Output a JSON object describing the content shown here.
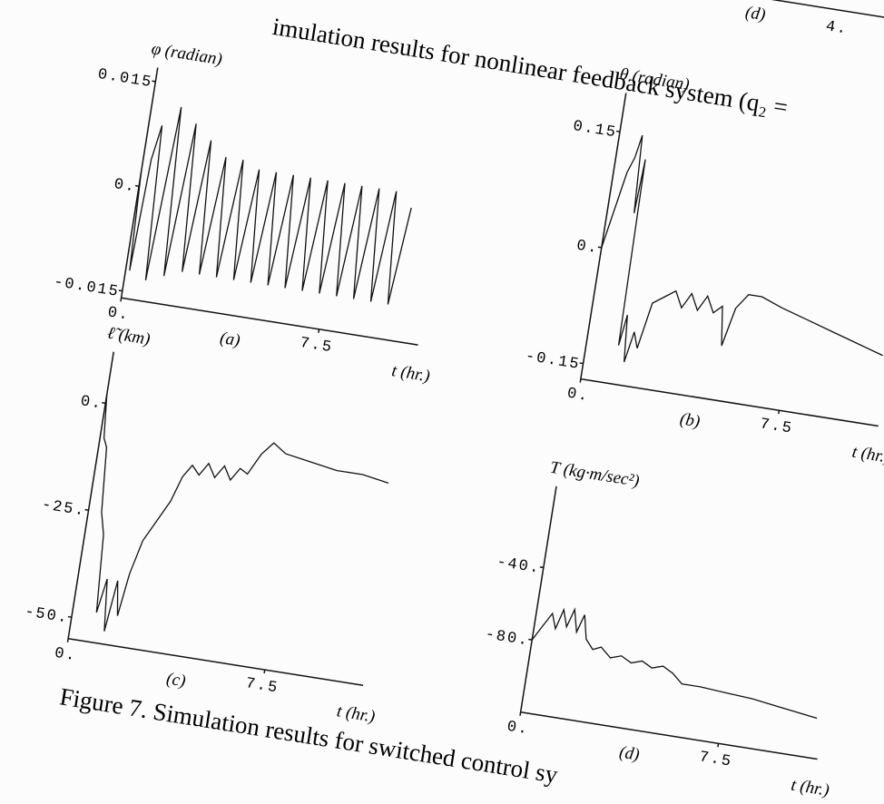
{
  "header": {
    "caption_fragment": "imulation results for nonlinear feedback system (q₂ =",
    "panel_label": "(d)",
    "tick_label": "4."
  },
  "chart_data": [
    {
      "type": "line",
      "y_label": "φ (radian)",
      "x_label": "t (hr.)",
      "panel_label": "(a)",
      "color": "#111111",
      "xlim": [
        0,
        11.25
      ],
      "ylim": [
        -0.016,
        0.017
      ],
      "xticks": [
        {
          "value": 0,
          "label": "0."
        },
        7.5
      ],
      "yticks": [
        0.015,
        {
          "value": 0,
          "label": "0."
        },
        -0.015
      ],
      "x": [
        0,
        0.15,
        0.3,
        0.5,
        0.8,
        1.1,
        1.45,
        1.75,
        2.1,
        2.4,
        2.75,
        3.05,
        3.4,
        3.7,
        4.05,
        4.35,
        4.7,
        5.0,
        5.35,
        5.65,
        6.0,
        6.3,
        6.65,
        6.95,
        7.3,
        7.6,
        7.95,
        8.25,
        8.6,
        8.9,
        9.25,
        9.55,
        9.9,
        10.2
      ],
      "values": [
        0.002,
        -0.012,
        0.004,
        0.009,
        -0.013,
        0.012,
        -0.012,
        0.01,
        -0.011,
        0.008,
        -0.011,
        0.006,
        -0.011,
        0.006,
        -0.011,
        0.005,
        -0.011,
        0.005,
        -0.011,
        0.005,
        -0.011,
        0.005,
        -0.011,
        0.005,
        -0.011,
        0.005,
        -0.011,
        0.005,
        -0.011,
        0.005,
        -0.011,
        0.005,
        -0.011,
        0.003
      ]
    },
    {
      "type": "line",
      "y_label": "θ (radian)",
      "x_label": "t (hr.)",
      "panel_label": "(b)",
      "color": "#111111",
      "xlim": [
        0,
        11.25
      ],
      "ylim": [
        -0.17,
        0.2
      ],
      "xticks": [
        {
          "value": 0,
          "label": "0."
        },
        7.5
      ],
      "yticks": [
        0.15,
        {
          "value": 0,
          "label": "0."
        },
        -0.15
      ],
      "x": [
        0,
        0.3,
        0.5,
        0.7,
        0.85,
        1.0,
        1.1,
        1.2,
        1.35,
        1.5,
        1.7,
        1.9,
        2.2,
        2.6,
        3.0,
        3.3,
        3.6,
        3.9,
        4.2,
        4.5,
        4.8,
        5.0,
        5.3,
        5.7,
        6.2,
        7.0,
        8.0,
        9.0,
        10.0,
        11.0
      ],
      "values": [
        0,
        0.06,
        0.1,
        0.12,
        0.15,
        0.05,
        0.12,
        -0.12,
        -0.08,
        -0.14,
        -0.1,
        -0.12,
        -0.06,
        -0.05,
        -0.04,
        -0.06,
        -0.04,
        -0.06,
        -0.04,
        -0.06,
        -0.05,
        -0.1,
        -0.05,
        -0.03,
        -0.03,
        -0.04,
        -0.05,
        -0.06,
        -0.07,
        -0.08
      ]
    },
    {
      "type": "line",
      "y_label": "ℓ̃ (km)",
      "x_label": "t (hr.)",
      "panel_label": "(c)",
      "color": "#111111",
      "xlim": [
        0,
        11.25
      ],
      "ylim": [
        -55,
        12
      ],
      "xticks": [
        {
          "value": 0,
          "label": "0."
        },
        7.5
      ],
      "yticks": [
        {
          "value": 0,
          "label": "0."
        },
        {
          "value": -25,
          "label": "-25."
        },
        {
          "value": -50,
          "label": "-50."
        }
      ],
      "x": [
        0,
        0.15,
        0.3,
        0.5,
        0.7,
        0.9,
        1.1,
        1.3,
        1.5,
        1.7,
        1.9,
        2.2,
        2.6,
        3.0,
        3.3,
        3.6,
        3.9,
        4.2,
        4.5,
        4.8,
        5.1,
        5.4,
        5.7,
        6.1,
        6.5,
        7.0,
        8.0,
        9.0,
        10.0,
        11.0
      ],
      "values": [
        2,
        -8,
        -10,
        -25,
        -30,
        -48,
        -40,
        -52,
        -40,
        -48,
        -38,
        -30,
        -25,
        -20,
        -14,
        -11,
        -13,
        -10,
        -13,
        -10,
        -13,
        -10,
        -11,
        -6,
        -3,
        -5,
        -6,
        -7,
        -7,
        -8
      ]
    },
    {
      "type": "line",
      "y_label": "T (kg·m/sec²)",
      "x_label": "t (hr.)",
      "panel_label": "(d)",
      "color": "#111111",
      "xlim": [
        0,
        11.25
      ],
      "ylim": [
        -120,
        5
      ],
      "xticks": [
        {
          "value": 0,
          "label": "0."
        },
        7.5
      ],
      "yticks": [
        {
          "value": -40,
          "label": "-40."
        },
        {
          "value": -80,
          "label": "-80."
        }
      ],
      "x": [
        0,
        0.3,
        0.6,
        0.8,
        1.0,
        1.2,
        1.4,
        1.6,
        1.8,
        2.0,
        2.3,
        2.6,
        3.0,
        3.4,
        3.8,
        4.2,
        4.6,
        5.0,
        5.4,
        5.8,
        6.5,
        7.5,
        8.5,
        9.5,
        10.5,
        11.0
      ],
      "values": [
        -80,
        -72,
        -64,
        -72,
        -61,
        -70,
        -60,
        -72,
        -62,
        -75,
        -80,
        -78,
        -83,
        -81,
        -84,
        -82,
        -85,
        -83,
        -86,
        -91,
        -91,
        -92,
        -93,
        -95,
        -97,
        -98
      ]
    }
  ],
  "caption": "Figure 7. Simulation results for switched control sy"
}
